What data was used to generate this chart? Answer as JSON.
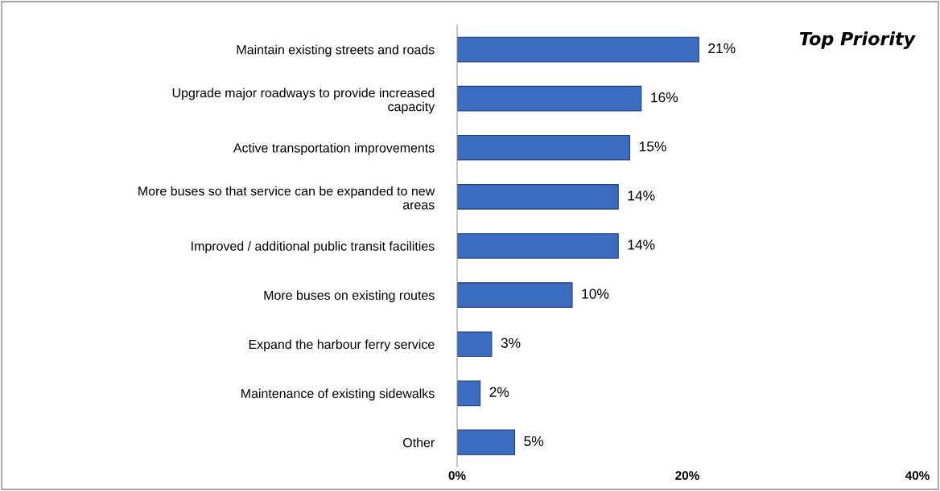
{
  "chart_data": {
    "type": "bar",
    "orientation": "horizontal",
    "categories": [
      "Maintain existing streets and roads",
      "Upgrade major roadways to provide increased\ncapacity",
      "Active transportation improvements",
      "More buses so that service can be expanded to new\nareas",
      "Improved / additional public transit facilities",
      "More buses on existing routes",
      "Expand the harbour ferry service",
      "Maintenance of existing sidewalks",
      "Other"
    ],
    "values": [
      21,
      16,
      15,
      14,
      14,
      10,
      3,
      2,
      5
    ],
    "value_labels": [
      "21%",
      "16%",
      "15%",
      "14%",
      "14%",
      "10%",
      "3%",
      "2%",
      "5%"
    ],
    "color": "#3a6cc0",
    "xlim": [
      0,
      40
    ],
    "xticks": [
      {
        "value": 0,
        "label": "0%"
      },
      {
        "value": 20,
        "label": "20%"
      },
      {
        "value": 40,
        "label": "40%"
      }
    ],
    "annotations": [
      "Top Priority"
    ],
    "grid": false,
    "legend": false
  }
}
